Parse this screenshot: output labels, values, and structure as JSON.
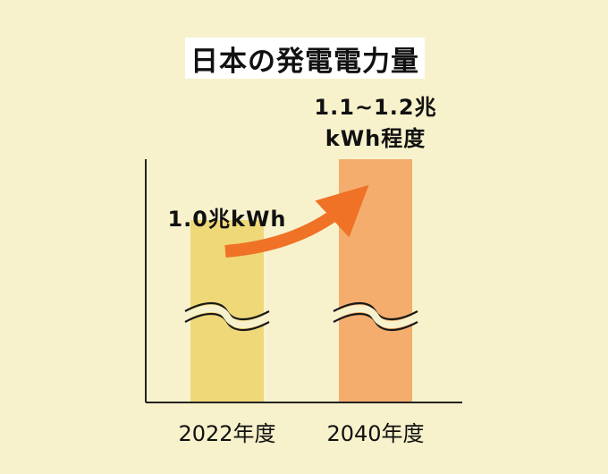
{
  "chart_data": {
    "type": "bar",
    "title": "日本の発電電力量",
    "categories": [
      "2022年度",
      "2040年度"
    ],
    "values": [
      1.0,
      1.15
    ],
    "value_labels": [
      [
        "1.0兆kWh"
      ],
      [
        "1.1~1.2兆",
        "kWh程度"
      ]
    ],
    "colors": [
      "#efd878",
      "#f4ad6d"
    ],
    "arrow_color": "#ef7227",
    "axis_break": true,
    "grid": false,
    "legend": "none",
    "xlabel": "",
    "ylabel": ""
  }
}
